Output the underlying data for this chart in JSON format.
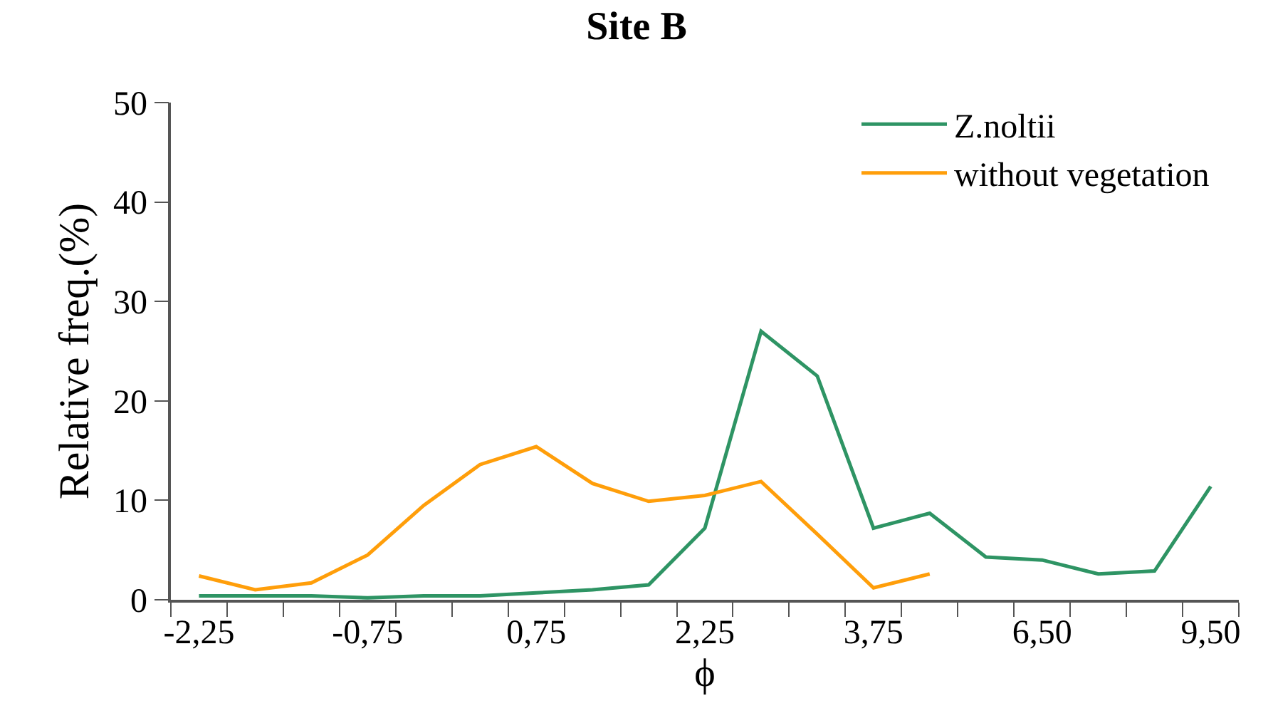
{
  "chart_data": {
    "type": "line",
    "title": "Site B",
    "xlabel": "ϕ",
    "ylabel": "Relative freq.(%)",
    "categories": [
      "-2,25",
      null,
      null,
      "-0,75",
      null,
      null,
      "0,75",
      null,
      null,
      "2,25",
      null,
      null,
      "3,75",
      null,
      null,
      "6,50",
      null,
      null,
      "9,50"
    ],
    "series": [
      {
        "name": "Z.noltii",
        "color": "#2e9464",
        "values": [
          0.4,
          0.4,
          0.4,
          0.2,
          0.4,
          0.4,
          0.7,
          1.0,
          1.5,
          7.2,
          27.0,
          22.5,
          7.2,
          8.7,
          4.3,
          4.0,
          2.6,
          2.9,
          11.4
        ]
      },
      {
        "name": "without vegetation",
        "color": "#ff9e0a",
        "values": [
          2.4,
          1.0,
          1.7,
          4.5,
          9.5,
          13.6,
          15.4,
          11.7,
          9.9,
          10.5,
          11.9,
          6.6,
          1.2,
          2.6,
          null,
          null,
          null,
          null,
          null
        ]
      }
    ],
    "ylim": [
      0,
      50
    ],
    "yticks": [
      0,
      10,
      20,
      30,
      40,
      50
    ],
    "legend": "top right",
    "marker": "none",
    "line_style": "solid"
  }
}
